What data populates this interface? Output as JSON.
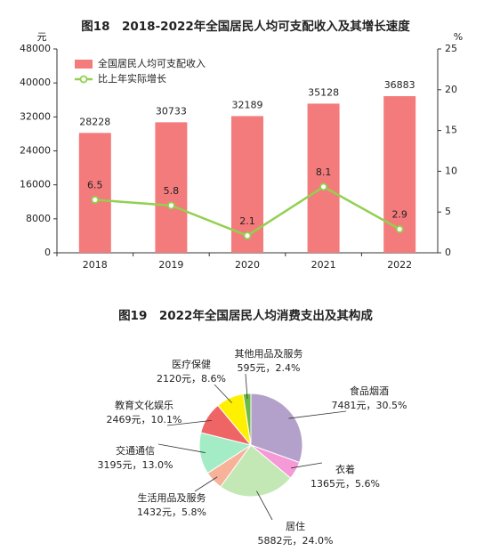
{
  "chart_data": [
    {
      "type": "bar",
      "title": "图18　2018-2022年全国居民人均可支配收入及其增长速度",
      "y_label": "元",
      "y2_label": "%",
      "categories": [
        "2018",
        "2019",
        "2020",
        "2021",
        "2022"
      ],
      "series": [
        {
          "name": "全国居民人均可支配收入",
          "type": "bar",
          "color": "#f47b7b",
          "values": [
            28228,
            30733,
            32189,
            35128,
            36883
          ]
        },
        {
          "name": "比上年实际增长",
          "type": "line",
          "axis": "y2",
          "color": "#92d050",
          "values": [
            6.5,
            5.8,
            2.1,
            8.1,
            2.9
          ]
        }
      ],
      "ylim": [
        0,
        48000
      ],
      "yticks": [
        0,
        8000,
        16000,
        24000,
        32000,
        40000,
        48000
      ],
      "y2lim": [
        0,
        25
      ],
      "y2ticks": [
        0,
        5,
        10,
        15,
        20,
        25
      ],
      "legend": "top-left"
    },
    {
      "type": "pie",
      "title": "图19　2022年全国居民人均消费支出及其构成",
      "categories": [
        "食品烟酒",
        "衣着",
        "居住",
        "生活用品及服务",
        "交通通信",
        "教育文化娱乐",
        "医疗保健",
        "其他用品及服务"
      ],
      "values": [
        7481,
        1365,
        5882,
        1432,
        3195,
        2469,
        2120,
        595
      ],
      "value_labels": [
        "7481元，30.5%",
        "1365元，5.6%",
        "5882元，24.0%",
        "1432元，5.8%",
        "3195元，13.0%",
        "2469元，10.1%",
        "2120元，8.6%",
        "595元，2.4%"
      ],
      "colors": [
        "#b4a1cb",
        "#f59ad6",
        "#c3e8b6",
        "#f6b39a",
        "#a3ecc6",
        "#ef6464",
        "#fff000",
        "#6dbb47"
      ]
    }
  ]
}
